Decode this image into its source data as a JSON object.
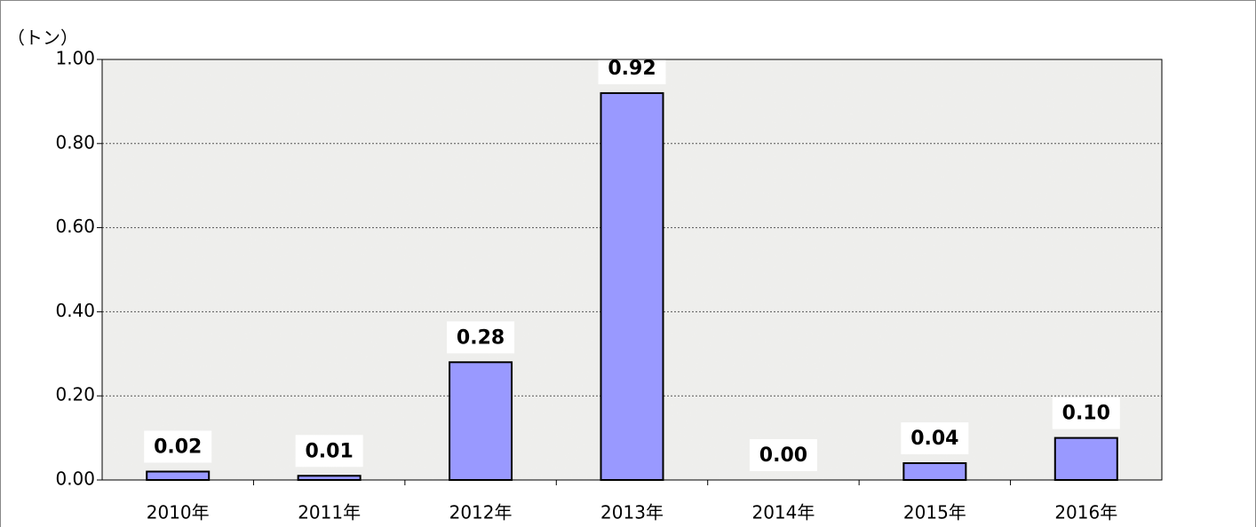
{
  "chart_data": {
    "type": "bar",
    "y_label": "（トン）",
    "categories": [
      "2010年",
      "2011年",
      "2012年",
      "2013年",
      "2014年",
      "2015年",
      "2016年"
    ],
    "values": [
      0.02,
      0.01,
      0.28,
      0.92,
      0.0,
      0.04,
      0.1
    ],
    "value_labels": [
      "0.02",
      "0.01",
      "0.28",
      "0.92",
      "0.00",
      "0.04",
      "0.10"
    ],
    "color": "#9999ff",
    "ylim": [
      0,
      1
    ],
    "yticks": [
      {
        "value": 0,
        "label": "0.00"
      },
      {
        "value": 0.2,
        "label": "0.20"
      },
      {
        "value": 0.4,
        "label": "0.40"
      },
      {
        "value": 0.6,
        "label": "0.60"
      },
      {
        "value": 0.8,
        "label": "0.80"
      },
      {
        "value": 1,
        "label": "1.00"
      }
    ],
    "grid": true
  }
}
